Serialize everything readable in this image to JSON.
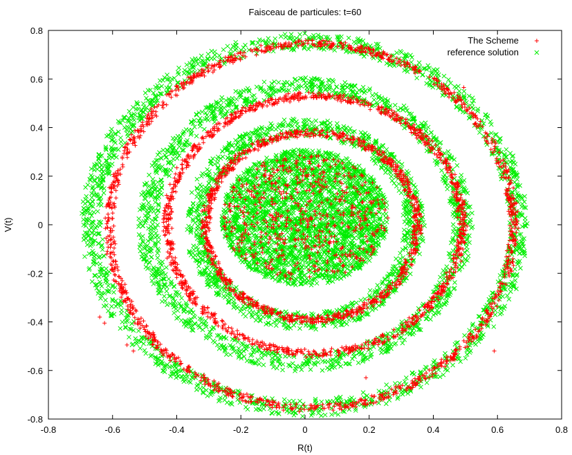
{
  "chart_data": {
    "type": "scatter",
    "title": "Faisceau de particules: t=60",
    "xlabel": "R(t)",
    "ylabel": "V(t)",
    "xlim": [
      -0.8,
      0.8
    ],
    "ylim": [
      -0.8,
      0.8
    ],
    "xticks": [
      "-0.8",
      "-0.6",
      "-0.4",
      "-0.2",
      "0",
      "0.2",
      "0.4",
      "0.6",
      "0.8"
    ],
    "yticks": [
      "-0.8",
      "-0.6",
      "-0.4",
      "-0.2",
      "0",
      "0.2",
      "0.4",
      "0.6",
      "0.8"
    ],
    "grid": false,
    "legend_position": "top-right",
    "series": [
      {
        "name": "The Scheme",
        "marker": "plus",
        "color": "#ff0000",
        "shape": "spiral rings",
        "core": {
          "center": [
            0.0,
            0.03
          ],
          "radius": [
            0.26,
            0.26
          ]
        },
        "rings": [
          {
            "center": [
              0.02,
              -0.005
            ],
            "radius": [
              0.33,
              0.385
            ]
          },
          {
            "center": [
              0.03,
              0.0
            ],
            "radius": [
              0.46,
              0.53
            ]
          },
          {
            "center": [
              0.02,
              -0.005
            ],
            "radius": [
              0.63,
              0.75
            ]
          }
        ],
        "stray_points": [
          [
            -0.64,
            -0.38
          ],
          [
            -0.625,
            -0.405
          ],
          [
            -0.555,
            -0.495
          ],
          [
            -0.535,
            -0.52
          ],
          [
            0.495,
            0.565
          ],
          [
            0.19,
            -0.63
          ],
          [
            0.59,
            -0.52
          ]
        ]
      },
      {
        "name": "reference solution",
        "marker": "cross",
        "color": "#00ee00",
        "shape": "spiral rings",
        "core": {
          "center": [
            0.0,
            0.03
          ],
          "radius": [
            0.26,
            0.28
          ]
        },
        "rings": [
          {
            "center": [
              0.0,
              0.0
            ],
            "radius": [
              0.34,
              0.4
            ]
          },
          {
            "center": [
              0.0,
              0.0
            ],
            "radius": [
              0.49,
              0.57
            ]
          },
          {
            "center": [
              0.0,
              0.0
            ],
            "radius": [
              0.665,
              0.755
            ]
          }
        ],
        "stray_points": []
      }
    ]
  }
}
